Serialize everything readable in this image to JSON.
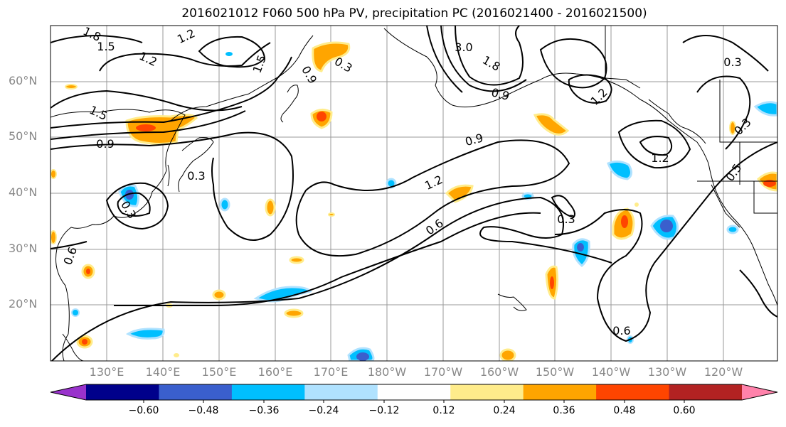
{
  "title": "2016021012 F060 500 hPa PV, precipitation PC (2016021400 - 2016021500)",
  "lat_labels": [
    "60°N",
    "50°N",
    "40°N",
    "30°N",
    "20°N"
  ],
  "lon_labels": [
    "130°E",
    "140°E",
    "150°E",
    "160°E",
    "170°E",
    "180°W",
    "170°W",
    "160°W",
    "150°W",
    "140°W",
    "130°W",
    "120°W"
  ],
  "contour_labels": [
    "1.8",
    "1.5",
    "1.2",
    "1.5",
    "1.2",
    "1.5",
    "0.9",
    "0.3",
    "0.9",
    "0.9",
    "1.2",
    "0.6",
    "0.6",
    "0.3",
    "3.0",
    "1.8",
    "0.3",
    "1.2",
    "0.9",
    "1.2",
    "0.3",
    "0.5",
    "0.3",
    "0.6",
    "0.3"
  ],
  "colorbar": {
    "ticks": [
      "−0.60",
      "−0.48",
      "−0.36",
      "−0.24",
      "−0.12",
      "0.12",
      "0.24",
      "0.36",
      "0.48",
      "0.60"
    ],
    "colors": [
      "#9932cc",
      "#00008b",
      "#3a5fcd",
      "#00bfff",
      "#b0e2ff",
      "#ffffff",
      "#ffec8b",
      "#ffa500",
      "#ff4500",
      "#b22222",
      "#ff82ab"
    ]
  }
}
